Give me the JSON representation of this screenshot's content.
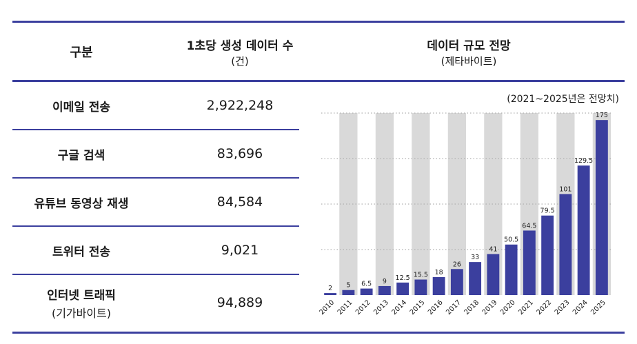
{
  "table": {
    "header": {
      "col1": "구분",
      "col2_title": "1초당 생성 데이터 수",
      "col2_unit": "(건)"
    },
    "rows": [
      {
        "label": "이메일 전송",
        "sub": "",
        "value": "2,922,248"
      },
      {
        "label": "구글 검색",
        "sub": "",
        "value": "83,696"
      },
      {
        "label": "유튜브 동영상 재생",
        "sub": "",
        "value": "84,584"
      },
      {
        "label": "트위터 전송",
        "sub": "",
        "value": "9,021"
      },
      {
        "label": "인터넷 트래픽",
        "sub": "(기가바이트)",
        "value": "94,889"
      }
    ]
  },
  "chart_header": {
    "title": "데이터 규모 전망",
    "unit": "(제타바이트)"
  },
  "colors": {
    "rule": "#3b3f9e",
    "bar": "#3b3f9e",
    "band": "#d9d9d9",
    "grid": "#b0b0b0"
  },
  "chart_data": {
    "type": "bar",
    "title": "데이터 규모 전망",
    "unit": "(제타바이트)",
    "note": "(2021~2025년은 전망치)",
    "categories": [
      "2010",
      "2011",
      "2012",
      "2013",
      "2014",
      "2015",
      "2016",
      "2017",
      "2018",
      "2019",
      "2020",
      "2021",
      "2022",
      "2023",
      "2024",
      "2025"
    ],
    "values": [
      2,
      5,
      6.5,
      9,
      12.5,
      15.5,
      18,
      26,
      33,
      41,
      50.5,
      64.5,
      79.5,
      101,
      129.5,
      175
    ],
    "value_labels": [
      "2",
      "5",
      "6.5",
      "9",
      "12.5",
      "15.5",
      "18",
      "26",
      "33",
      "41",
      "50.5",
      "64.5",
      "79.5",
      "101",
      "129.5",
      "175"
    ],
    "ylim": [
      0,
      200
    ],
    "grid": true,
    "legend": "none"
  }
}
